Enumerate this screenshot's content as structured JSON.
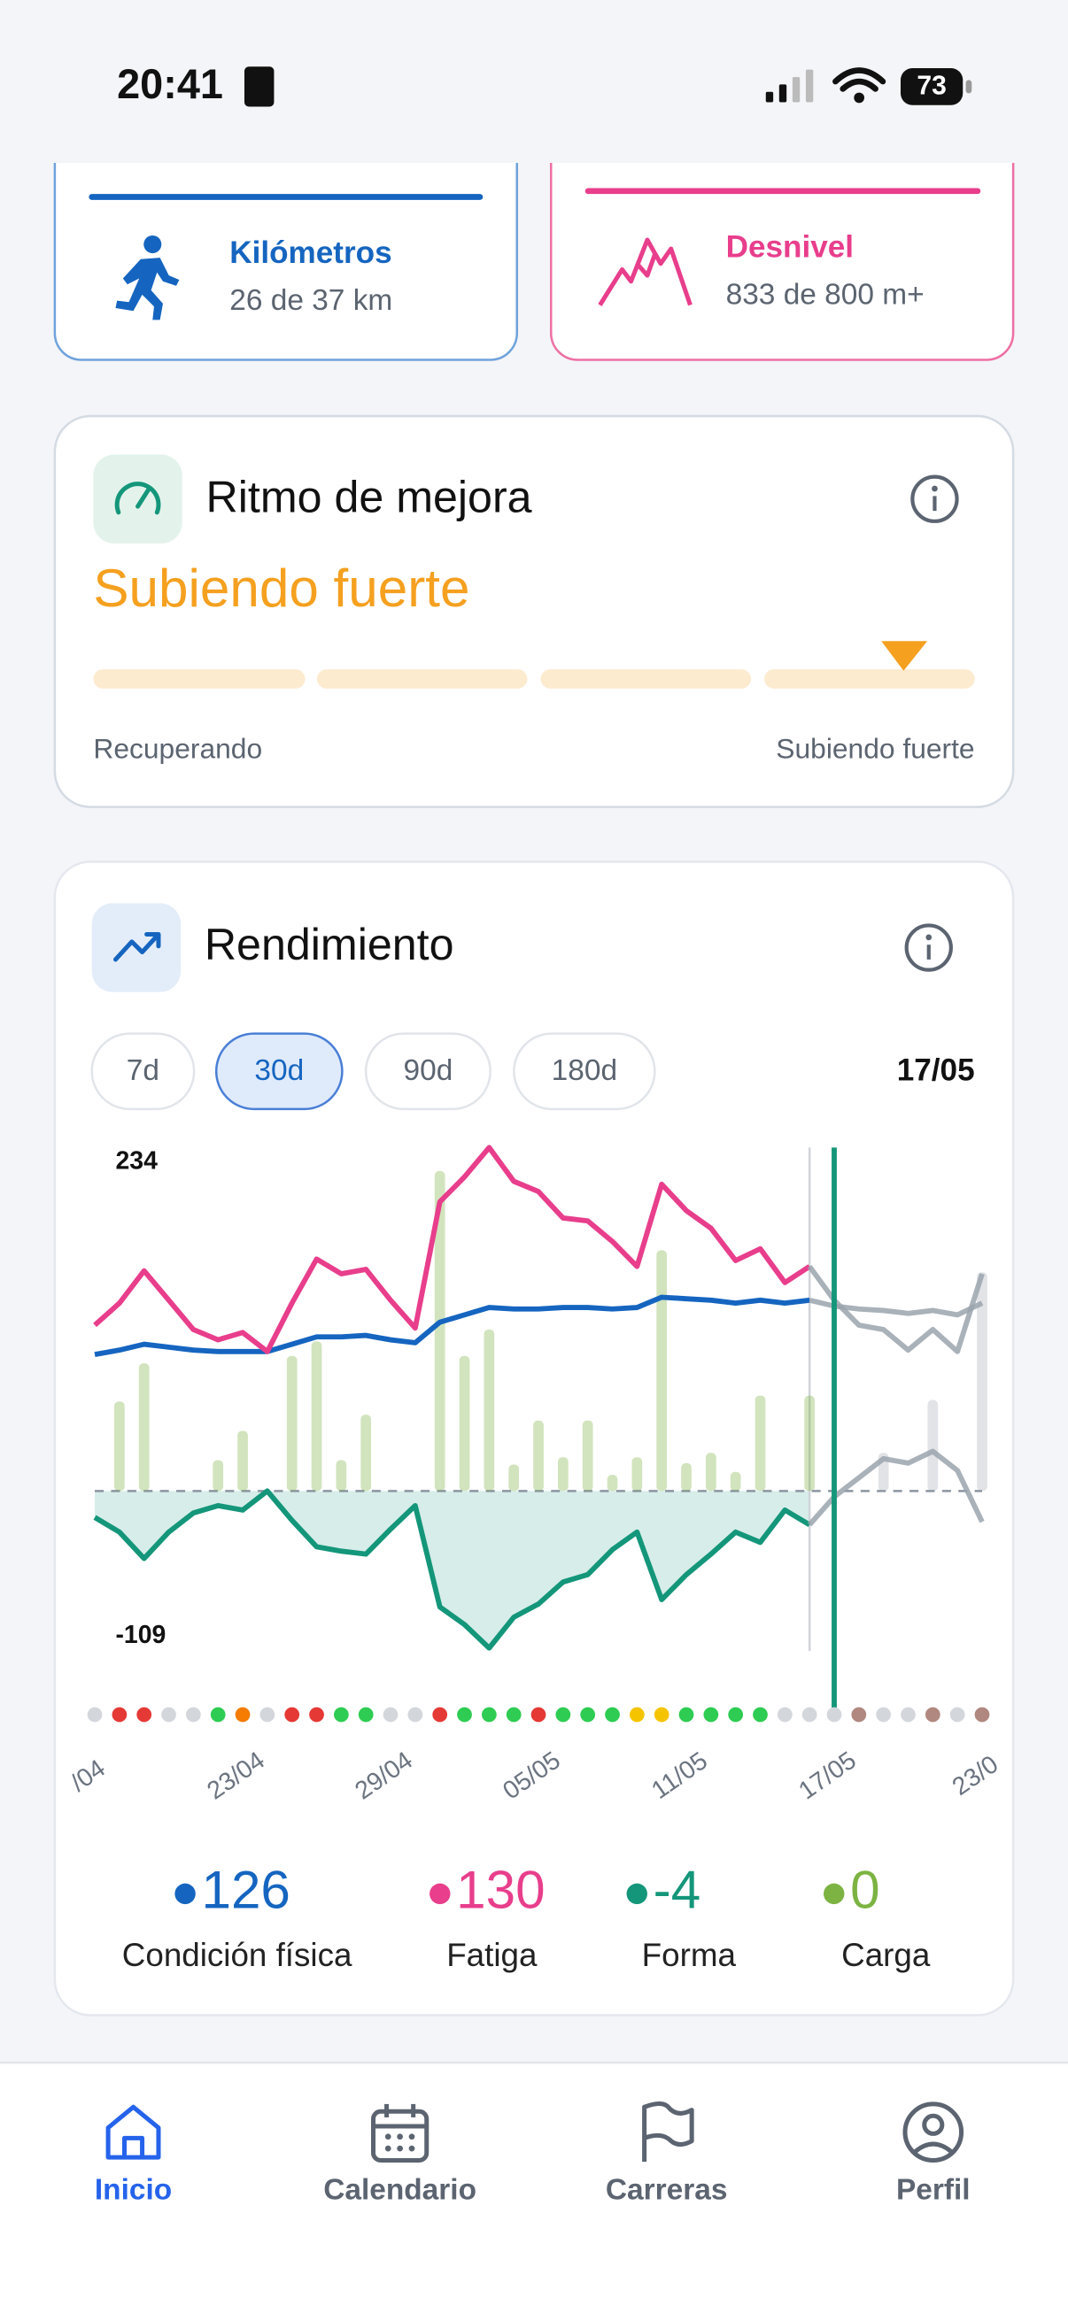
{
  "status_bar": {
    "time": "20:41",
    "battery": "73"
  },
  "goals": [
    {
      "label": "Kilómetros",
      "detail": "26 de 37 km"
    },
    {
      "label": "Desnivel",
      "detail": "833 de 800 m+"
    }
  ],
  "ritmo": {
    "title": "Ritmo de mejora",
    "status": "Subiendo fuerte",
    "scale_min": "Recuperando",
    "scale_max": "Subiendo fuerte"
  },
  "rendimiento": {
    "title": "Rendimiento",
    "ranges": [
      "7d",
      "30d",
      "90d",
      "180d"
    ],
    "selected_range": "30d"
  },
  "chart_data": {
    "type": "line",
    "selected_date": "17/05",
    "categories": [
      "/04",
      null,
      null,
      null,
      null,
      null,
      "23/04",
      null,
      null,
      null,
      null,
      null,
      "29/04",
      null,
      null,
      null,
      null,
      null,
      "05/05",
      null,
      null,
      null,
      null,
      null,
      "11/05",
      null,
      null,
      null,
      null,
      null,
      "17/05",
      null,
      null,
      null,
      null,
      null,
      "23/0"
    ],
    "ylim": [
      -109,
      234
    ],
    "yticks": [
      234,
      -109
    ],
    "forecast_color": "#9aa3ad",
    "series": [
      {
        "name": "Condición física",
        "color": "#1565c0",
        "current": 126,
        "values": [
          93,
          96,
          100,
          98,
          96,
          95,
          95,
          95,
          100,
          105,
          105,
          106,
          103,
          101,
          115,
          120,
          125,
          124,
          124,
          125,
          125,
          124,
          125,
          132,
          131,
          130,
          128,
          130,
          128,
          130,
          126,
          124,
          123,
          121,
          123,
          120,
          128
        ]
      },
      {
        "name": "Fatiga",
        "color": "#e83e8c",
        "current": 130,
        "values": [
          113,
          128,
          150,
          130,
          110,
          103,
          108,
          95,
          128,
          158,
          148,
          151,
          130,
          111,
          197,
          214,
          234,
          211,
          204,
          186,
          184,
          170,
          153,
          209,
          191,
          179,
          157,
          165,
          142,
          153,
          130,
          113,
          110,
          96,
          110,
          95,
          148
        ]
      },
      {
        "name": "Forma",
        "color": "#14967a",
        "current": -4,
        "area": true,
        "values": [
          -18,
          -28,
          -46,
          -28,
          -15,
          -10,
          -13,
          0,
          -20,
          -38,
          -41,
          -43,
          -26,
          -10,
          -79,
          -91,
          -107,
          -86,
          -77,
          -62,
          -57,
          -40,
          -28,
          -74,
          -57,
          -43,
          -28,
          -35,
          -13,
          -23,
          -4,
          9,
          22,
          19,
          27,
          14,
          -21
        ]
      },
      {
        "name": "Carga",
        "type": "bar",
        "color": "#7cb342",
        "current": 0,
        "values": [
          0,
          61,
          87,
          0,
          0,
          21,
          41,
          0,
          92,
          102,
          21,
          52,
          0,
          0,
          218,
          92,
          110,
          18,
          48,
          23,
          48,
          11,
          23,
          164,
          19,
          26,
          13,
          65,
          0,
          65,
          0,
          0,
          26,
          0,
          62,
          0,
          149
        ]
      }
    ],
    "day_status_colors": [
      "#d3d7dc",
      "#e53935",
      "#e53935",
      "#d3d7dc",
      "#d3d7dc",
      "#2ecc52",
      "#f57c00",
      "#d3d7dc",
      "#e53935",
      "#e53935",
      "#2ecc52",
      "#2ecc52",
      "#d3d7dc",
      "#d3d7dc",
      "#e53935",
      "#2ecc52",
      "#2ecc52",
      "#2ecc52",
      "#e53935",
      "#2ecc52",
      "#2ecc52",
      "#2ecc52",
      "#f5c400",
      "#f5c400",
      "#2ecc52",
      "#2ecc52",
      "#2ecc52",
      "#2ecc52",
      "#d3d7dc",
      "#d3d7dc",
      "#d3d7dc",
      "#b08880",
      "#d3d7dc",
      "#d3d7dc",
      "#b08880",
      "#d3d7dc",
      "#b08880"
    ]
  },
  "nav": {
    "items": [
      "Inicio",
      "Calendario",
      "Carreras",
      "Perfil"
    ],
    "active": "Inicio"
  }
}
